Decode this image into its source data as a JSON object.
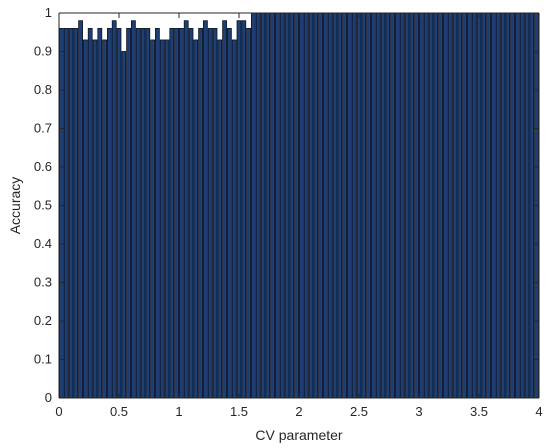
{
  "chart_data": {
    "type": "bar",
    "title": "",
    "xlabel": "CV parameter",
    "ylabel": "Accuracy",
    "xlim": [
      0,
      4
    ],
    "ylim": [
      0,
      1
    ],
    "x_ticks": [
      0,
      0.5,
      1,
      1.5,
      2,
      2.5,
      3,
      3.5,
      4
    ],
    "x_tick_labels": [
      "0",
      "0.5",
      "1",
      "1.5",
      "2",
      "2.5",
      "3",
      "3.5",
      "4"
    ],
    "y_ticks": [
      0,
      0.1,
      0.2,
      0.3,
      0.4,
      0.5,
      0.6,
      0.7,
      0.8,
      0.9,
      1
    ],
    "y_tick_labels": [
      "0",
      "0.1",
      "0.2",
      "0.3",
      "0.4",
      "0.5",
      "0.6",
      "0.7",
      "0.8",
      "0.9",
      "1"
    ],
    "bar_width": 0.033,
    "x": [
      0.02,
      0.06,
      0.1,
      0.14,
      0.18,
      0.22,
      0.26,
      0.3,
      0.34,
      0.38,
      0.42,
      0.46,
      0.5,
      0.54,
      0.58,
      0.62,
      0.66,
      0.7,
      0.74,
      0.78,
      0.82,
      0.86,
      0.9,
      0.94,
      0.98,
      1.02,
      1.06,
      1.1,
      1.14,
      1.18,
      1.22,
      1.26,
      1.3,
      1.34,
      1.38,
      1.42,
      1.46,
      1.5,
      1.54,
      1.58,
      1.62,
      1.66,
      1.7,
      1.74,
      1.78,
      1.82,
      1.86,
      1.9,
      1.94,
      1.98,
      2.02,
      2.06,
      2.1,
      2.14,
      2.18,
      2.22,
      2.26,
      2.3,
      2.34,
      2.38,
      2.42,
      2.46,
      2.5,
      2.54,
      2.58,
      2.62,
      2.66,
      2.7,
      2.74,
      2.78,
      2.82,
      2.86,
      2.9,
      2.94,
      2.98,
      3.02,
      3.06,
      3.1,
      3.14,
      3.18,
      3.22,
      3.26,
      3.3,
      3.34,
      3.38,
      3.42,
      3.46,
      3.5,
      3.54,
      3.58,
      3.62,
      3.66,
      3.7,
      3.74,
      3.78,
      3.82,
      3.86,
      3.9,
      3.94,
      3.98
    ],
    "values": [
      0.96,
      0.96,
      0.96,
      0.96,
      0.98,
      0.93,
      0.96,
      0.93,
      0.96,
      0.93,
      0.96,
      0.98,
      0.96,
      0.9,
      0.96,
      0.98,
      0.96,
      0.96,
      0.96,
      0.93,
      0.96,
      0.93,
      0.93,
      0.96,
      0.96,
      0.96,
      0.98,
      0.96,
      0.93,
      0.96,
      0.98,
      0.96,
      0.96,
      0.93,
      0.98,
      0.96,
      0.93,
      0.98,
      0.98,
      0.96,
      1,
      1,
      1,
      1,
      1,
      1,
      1,
      1,
      1,
      1,
      1,
      1,
      1,
      1,
      1,
      1,
      1,
      1,
      1,
      1,
      1,
      1,
      1,
      1,
      1,
      1,
      1,
      1,
      1,
      1,
      1,
      1,
      1,
      1,
      1,
      1,
      1,
      1,
      1,
      1,
      1,
      1,
      1,
      1,
      1,
      1,
      1,
      1,
      1,
      1,
      1,
      1,
      1,
      1,
      1,
      1,
      1,
      1,
      1,
      1
    ],
    "colors": {
      "bar_fill": "#1f3f73",
      "bar_edge": "#0a1426",
      "axis": "#262626",
      "background": "#ffffff"
    },
    "grid": false,
    "legend": "none"
  }
}
